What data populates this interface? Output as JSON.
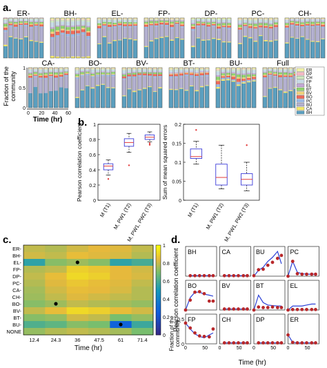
{
  "panel_labels": {
    "a": "a.",
    "b": "b.",
    "c": "c.",
    "d": "d."
  },
  "colors": {
    "ER": "#f3f3a6",
    "DP": "#f5b8c4",
    "CH": "#cfe9bf",
    "FP": "#c7dbe7",
    "EL": "#c5a7d8",
    "BT": "#8fd36f",
    "BV": "#f1d27c",
    "BO": "#ef6a5a",
    "PC": "#9bb9e5",
    "BU": "#b3b0d0",
    "CA": "#f5ea6a",
    "BH": "#5b9fbf"
  },
  "panel_a": {
    "groups_row1": [
      "ER-",
      "BH-",
      "EL-",
      "FP-",
      "DP-",
      "PC-",
      "CH-"
    ],
    "groups_row2": [
      "CA-",
      "BO-",
      "BV-",
      "BT-",
      "BU-",
      "Full"
    ],
    "ylabel": "Fraction of the\ncommunity",
    "xlabel": "Time (hr)",
    "xticks": [
      "0",
      "20",
      "40",
      "60"
    ],
    "yticks": [
      "0",
      "0.5",
      "1"
    ],
    "legend": [
      "ER",
      "DP",
      "CH",
      "FP",
      "EL",
      "BT",
      "BV",
      "BO",
      "PC",
      "BU",
      "CA",
      "BH"
    ]
  },
  "chart_data": [
    {
      "type": "box",
      "title": "",
      "ylabel": "Pearson correlation coefficient",
      "categories": [
        "M (T1)",
        "M, PW1 (T2)",
        "M, PW1, PW2 (T3)"
      ],
      "ylim": [
        0,
        1
      ],
      "yticks": [
        "0",
        "0.2",
        "0.4",
        "0.6",
        "0.8",
        "1"
      ],
      "boxes": [
        {
          "min": 0.33,
          "q1": 0.4,
          "median": 0.45,
          "q3": 0.48,
          "max": 0.53,
          "outliers": [
            0.28
          ]
        },
        {
          "min": 0.63,
          "q1": 0.71,
          "median": 0.76,
          "q3": 0.81,
          "max": 0.88,
          "outliers": [
            0.46
          ]
        },
        {
          "min": 0.77,
          "q1": 0.8,
          "median": 0.83,
          "q3": 0.86,
          "max": 0.9,
          "outliers": [
            0.73,
            0.75
          ]
        }
      ]
    },
    {
      "type": "box",
      "title": "",
      "ylabel": "Sum of mean squared errors",
      "categories": [
        "M (T1)",
        "M, PW1 (T2)",
        "M, PW1, PW2 (T3)"
      ],
      "ylim": [
        0,
        0.2
      ],
      "yticks": [
        "0",
        "0.05",
        "0.1",
        "0.15",
        "0.2"
      ],
      "boxes": [
        {
          "min": 0.095,
          "q1": 0.11,
          "median": 0.115,
          "q3": 0.135,
          "max": 0.155,
          "outliers": [
            0.185
          ]
        },
        {
          "min": 0.03,
          "q1": 0.04,
          "median": 0.06,
          "q3": 0.095,
          "max": 0.145,
          "outliers": []
        },
        {
          "min": 0.025,
          "q1": 0.04,
          "median": 0.055,
          "q3": 0.07,
          "max": 0.1,
          "outliers": [
            0.145
          ]
        }
      ]
    },
    {
      "type": "heatmap",
      "xlabel": "Time (hr)",
      "colorbar_label": "Pearson correlation coefficient",
      "colorbar_ticks": [
        "0",
        "0.2",
        "0.4",
        "0.6",
        "0.8",
        "1"
      ],
      "x": [
        "12.4",
        "24.3",
        "36",
        "47.5",
        "61",
        "71.4"
      ],
      "y": [
        "ER-",
        "BH-",
        "EL-",
        "FP-",
        "DP-",
        "PC-",
        "CA-",
        "CH-",
        "BO-",
        "BV-",
        "BT-",
        "BU-",
        "NONE"
      ],
      "values": [
        [
          0.8,
          0.78,
          0.82,
          0.85,
          0.84,
          0.8
        ],
        [
          0.82,
          0.8,
          0.86,
          0.84,
          0.83,
          0.78
        ],
        [
          0.55,
          0.72,
          0.75,
          0.72,
          0.55,
          0.6
        ],
        [
          0.78,
          0.8,
          0.9,
          0.88,
          0.85,
          0.82
        ],
        [
          0.8,
          0.86,
          0.92,
          0.9,
          0.85,
          0.83
        ],
        [
          0.78,
          0.84,
          0.88,
          0.86,
          0.84,
          0.8
        ],
        [
          0.76,
          0.82,
          0.86,
          0.85,
          0.83,
          0.78
        ],
        [
          0.75,
          0.8,
          0.84,
          0.82,
          0.8,
          0.78
        ],
        [
          0.72,
          0.75,
          0.8,
          0.78,
          0.76,
          0.74
        ],
        [
          0.8,
          0.86,
          0.92,
          0.9,
          0.86,
          0.82
        ],
        [
          0.72,
          0.74,
          0.82,
          0.8,
          0.7,
          0.74
        ],
        [
          0.62,
          0.65,
          0.72,
          0.7,
          0.28,
          0.58
        ],
        [
          0.74,
          0.78,
          0.8,
          0.78,
          0.76,
          0.7
        ]
      ],
      "markers": [
        [
          2,
          2
        ],
        [
          8,
          1
        ],
        [
          11,
          4
        ]
      ]
    },
    {
      "type": "line",
      "ylabel": "Fraction of the\ncommunity",
      "xlabel": "Time (hr)",
      "xticks": [
        "0",
        "50"
      ],
      "yticks": [
        "0",
        "0.5"
      ],
      "panels": [
        {
          "name": "BH",
          "x": [
            12,
            24,
            36,
            48,
            61,
            71
          ],
          "model": [
            0.01,
            0.01,
            0.01,
            0.01,
            0.01,
            0.01
          ],
          "obs": [
            0.01,
            0.01,
            0.01,
            0.01,
            0.01,
            0.01
          ],
          "ylim": [
            0,
            0.6
          ]
        },
        {
          "name": "CA",
          "x": [
            12,
            24,
            36,
            48,
            61,
            71
          ],
          "model": [
            0.01,
            0.01,
            0.01,
            0.01,
            0.01,
            0.01
          ],
          "obs": [
            0.01,
            0.01,
            0.01,
            0.01,
            0.01,
            0.01
          ],
          "ylim": [
            0,
            0.6
          ]
        },
        {
          "name": "BU",
          "x": [
            0,
            12,
            24,
            36,
            48,
            61,
            71
          ],
          "model": [
            0.0,
            0.12,
            0.18,
            0.3,
            0.38,
            0.5,
            0.25
          ],
          "obs": [
            0.01,
            0.13,
            0.14,
            0.22,
            0.28,
            0.36,
            0.42
          ],
          "ylim": [
            0,
            0.6
          ]
        },
        {
          "name": "PC",
          "x": [
            0,
            12,
            24,
            36,
            48,
            61,
            71
          ],
          "model": [
            0.0,
            0.3,
            0.08,
            0.05,
            0.04,
            0.04,
            0.04
          ],
          "obs": [
            0.0,
            0.3,
            0.05,
            0.04,
            0.04,
            0.04,
            0.04
          ],
          "ylim": [
            0,
            0.6
          ]
        },
        {
          "name": "BO",
          "x": [
            0,
            12,
            24,
            36,
            48,
            61,
            71
          ],
          "model": [
            0.0,
            0.25,
            0.36,
            0.36,
            0.32,
            0.3,
            0.28
          ],
          "obs": [
            0.0,
            0.2,
            0.36,
            0.37,
            0.33,
            0.18,
            0.18
          ],
          "ylim": [
            0,
            0.6
          ]
        },
        {
          "name": "BV",
          "x": [
            12,
            24,
            36,
            48,
            61,
            71
          ],
          "model": [
            0.02,
            0.02,
            0.02,
            0.02,
            0.02,
            0.02
          ],
          "obs": [
            0.02,
            0.02,
            0.02,
            0.02,
            0.02,
            0.02
          ],
          "ylim": [
            0,
            0.6
          ]
        },
        {
          "name": "BT",
          "x": [
            0,
            12,
            24,
            36,
            48,
            61,
            71
          ],
          "model": [
            0.0,
            0.3,
            0.15,
            0.1,
            0.09,
            0.08,
            0.08
          ],
          "obs": [
            0.0,
            0.06,
            0.05,
            0.05,
            0.06,
            0.05,
            0.05
          ],
          "ylim": [
            0,
            0.6
          ]
        },
        {
          "name": "EL",
          "x": [
            0,
            12,
            24,
            36,
            48,
            61,
            71
          ],
          "model": [
            0.0,
            0.08,
            0.08,
            0.08,
            0.1,
            0.12,
            0.12
          ],
          "obs": [
            0.0,
            0.01,
            0.01,
            0.01,
            0.01,
            0.01,
            0.01
          ],
          "ylim": [
            0,
            0.6
          ]
        },
        {
          "name": "FP",
          "x": [
            0,
            12,
            24,
            36,
            48,
            61,
            71
          ],
          "model": [
            0.42,
            0.3,
            0.2,
            0.15,
            0.12,
            0.18,
            0.22
          ],
          "obs": [
            0.42,
            0.32,
            0.22,
            0.16,
            0.15,
            0.14,
            0.3
          ],
          "ylim": [
            0,
            0.6
          ]
        },
        {
          "name": "CH",
          "x": [
            12,
            24,
            36,
            48,
            61,
            71
          ],
          "model": [
            0.02,
            0.02,
            0.02,
            0.02,
            0.02,
            0.02
          ],
          "obs": [
            0.02,
            0.02,
            0.02,
            0.02,
            0.02,
            0.02
          ],
          "ylim": [
            0,
            0.6
          ]
        },
        {
          "name": "DP",
          "x": [
            12,
            24,
            36,
            48,
            61,
            71
          ],
          "model": [
            0.02,
            0.02,
            0.02,
            0.02,
            0.02,
            0.02
          ],
          "obs": [
            0.02,
            0.02,
            0.02,
            0.02,
            0.02,
            0.02
          ],
          "ylim": [
            0,
            0.6
          ]
        },
        {
          "name": "ER",
          "x": [
            0,
            12,
            24,
            36,
            48,
            61,
            71
          ],
          "model": [
            0.18,
            0.03,
            0.02,
            0.02,
            0.02,
            0.02,
            0.02
          ],
          "obs": [
            0.18,
            0.03,
            0.02,
            0.02,
            0.02,
            0.02,
            0.02
          ],
          "ylim": [
            0,
            0.6
          ]
        }
      ]
    }
  ]
}
